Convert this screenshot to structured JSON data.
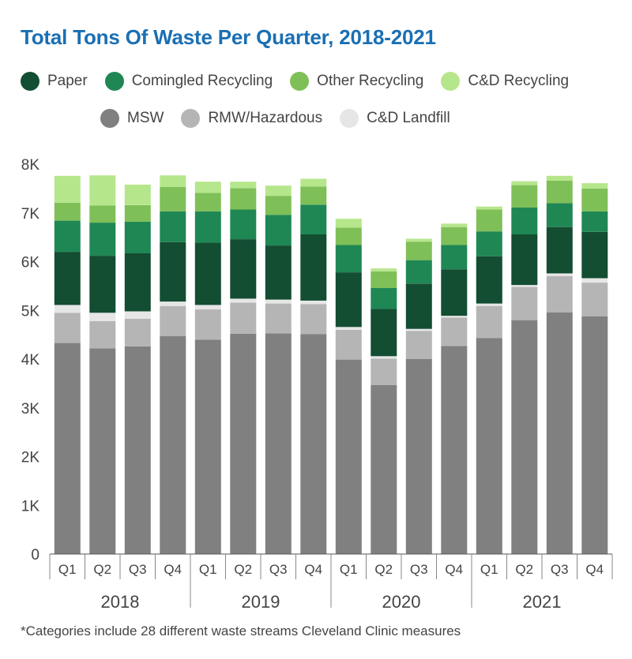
{
  "title": "Total Tons Of Waste Per Quarter, 2018-2021",
  "footnote": "*Categories include 28 different waste streams Cleveland Clinic measures",
  "legend": {
    "row1": [
      {
        "name": "Paper",
        "color": "#134d32"
      },
      {
        "name": "Comingled Recycling",
        "color": "#1f8754"
      },
      {
        "name": "Other Recycling",
        "color": "#7fbf58"
      },
      {
        "name": "C&D Recycling",
        "color": "#b6e68c"
      }
    ],
    "row2": [
      {
        "name": "MSW",
        "color": "#808080"
      },
      {
        "name": "RMW/Hazardous",
        "color": "#b5b5b5"
      },
      {
        "name": "C&D Landfill",
        "color": "#e6e6e6"
      }
    ]
  },
  "chart_data": {
    "type": "bar",
    "stacked": true,
    "title": "Total Tons Of Waste Per Quarter, 2018-2021",
    "categories": [
      "Q1",
      "Q2",
      "Q3",
      "Q4",
      "Q1",
      "Q2",
      "Q3",
      "Q4",
      "Q1",
      "Q2",
      "Q3",
      "Q4",
      "Q1",
      "Q2",
      "Q3",
      "Q4"
    ],
    "groups": [
      {
        "label": "2018",
        "count": 4
      },
      {
        "label": "2019",
        "count": 4
      },
      {
        "label": "2020",
        "count": 4
      },
      {
        "label": "2021",
        "count": 4
      }
    ],
    "ylim": [
      0,
      8000
    ],
    "yticks": [
      0,
      1000,
      2000,
      3000,
      4000,
      5000,
      6000,
      7000,
      8000
    ],
    "ytick_labels": [
      "0",
      "1K",
      "2K",
      "3K",
      "4K",
      "5K",
      "6K",
      "7K",
      "8K"
    ],
    "series": [
      {
        "name": "MSW",
        "color": "#808080",
        "values": [
          4330,
          4220,
          4260,
          4470,
          4400,
          4520,
          4530,
          4510,
          3990,
          3470,
          4000,
          4270,
          4430,
          4800,
          4960,
          4880
        ]
      },
      {
        "name": "RMW/Hazardous",
        "color": "#b5b5b5",
        "values": [
          620,
          560,
          570,
          620,
          620,
          640,
          610,
          620,
          610,
          540,
          580,
          580,
          660,
          680,
          740,
          690
        ]
      },
      {
        "name": "C&D Landfill",
        "color": "#e6e6e6",
        "values": [
          160,
          170,
          150,
          90,
          90,
          80,
          80,
          70,
          60,
          50,
          40,
          40,
          50,
          40,
          60,
          90
        ]
      },
      {
        "name": "Paper",
        "color": "#134d32",
        "values": [
          1090,
          1170,
          1190,
          1220,
          1280,
          1220,
          1110,
          1360,
          1120,
          970,
          930,
          950,
          970,
          1040,
          950,
          950
        ]
      },
      {
        "name": "Comingled Recycling",
        "color": "#1f8754",
        "values": [
          640,
          680,
          650,
          630,
          640,
          610,
          630,
          610,
          560,
          430,
          480,
          500,
          510,
          550,
          490,
          420
        ]
      },
      {
        "name": "Other Recycling",
        "color": "#7fbf58",
        "values": [
          370,
          350,
          340,
          500,
          380,
          440,
          390,
          370,
          360,
          340,
          380,
          370,
          450,
          460,
          460,
          470
        ]
      },
      {
        "name": "C&D Recycling",
        "color": "#b6e68c",
        "values": [
          550,
          620,
          420,
          240,
          230,
          130,
          210,
          160,
          180,
          60,
          60,
          70,
          60,
          80,
          100,
          110
        ]
      }
    ],
    "grid": false,
    "legend_position": "top"
  }
}
